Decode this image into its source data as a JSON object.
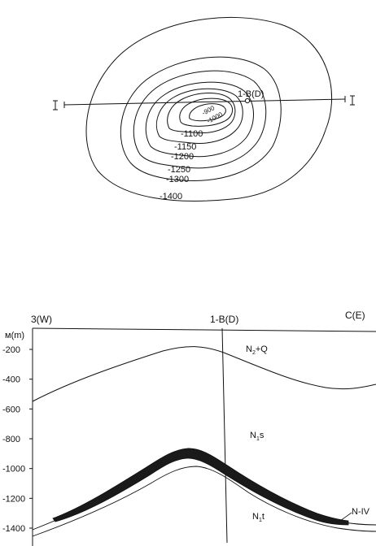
{
  "map": {
    "well_label": "1-B(D)",
    "section_endpoint_left": "I",
    "section_endpoint_right": "I",
    "contours": [
      {
        "label": "-900"
      },
      {
        "label": "-1000"
      },
      {
        "label": "-1100"
      },
      {
        "label": "-1150"
      },
      {
        "label": "-1200"
      },
      {
        "label": "-1250"
      },
      {
        "label": "-1300"
      },
      {
        "label": "-1400"
      }
    ]
  },
  "section": {
    "left_header": "3(W)",
    "center_header": "1-B(D)",
    "right_header": "C(E)",
    "unit_label": "м(m)",
    "y_ticks": [
      "-200",
      "-400",
      "-600",
      "-800",
      "-1000",
      "-1200",
      "-1400"
    ],
    "y_values": [
      -200,
      -400,
      -600,
      -800,
      -1000,
      -1200,
      -1400
    ],
    "units": [
      {
        "base": "N",
        "sub": "2",
        "suffix": "+Q"
      },
      {
        "base": "N",
        "sub": "1",
        "suffix": "s"
      },
      {
        "base": "N",
        "sub": "1",
        "suffix": "t"
      }
    ],
    "seam_label": "N-IV",
    "colors": {
      "line": "#111111",
      "seam": "#1a1a1a"
    }
  }
}
